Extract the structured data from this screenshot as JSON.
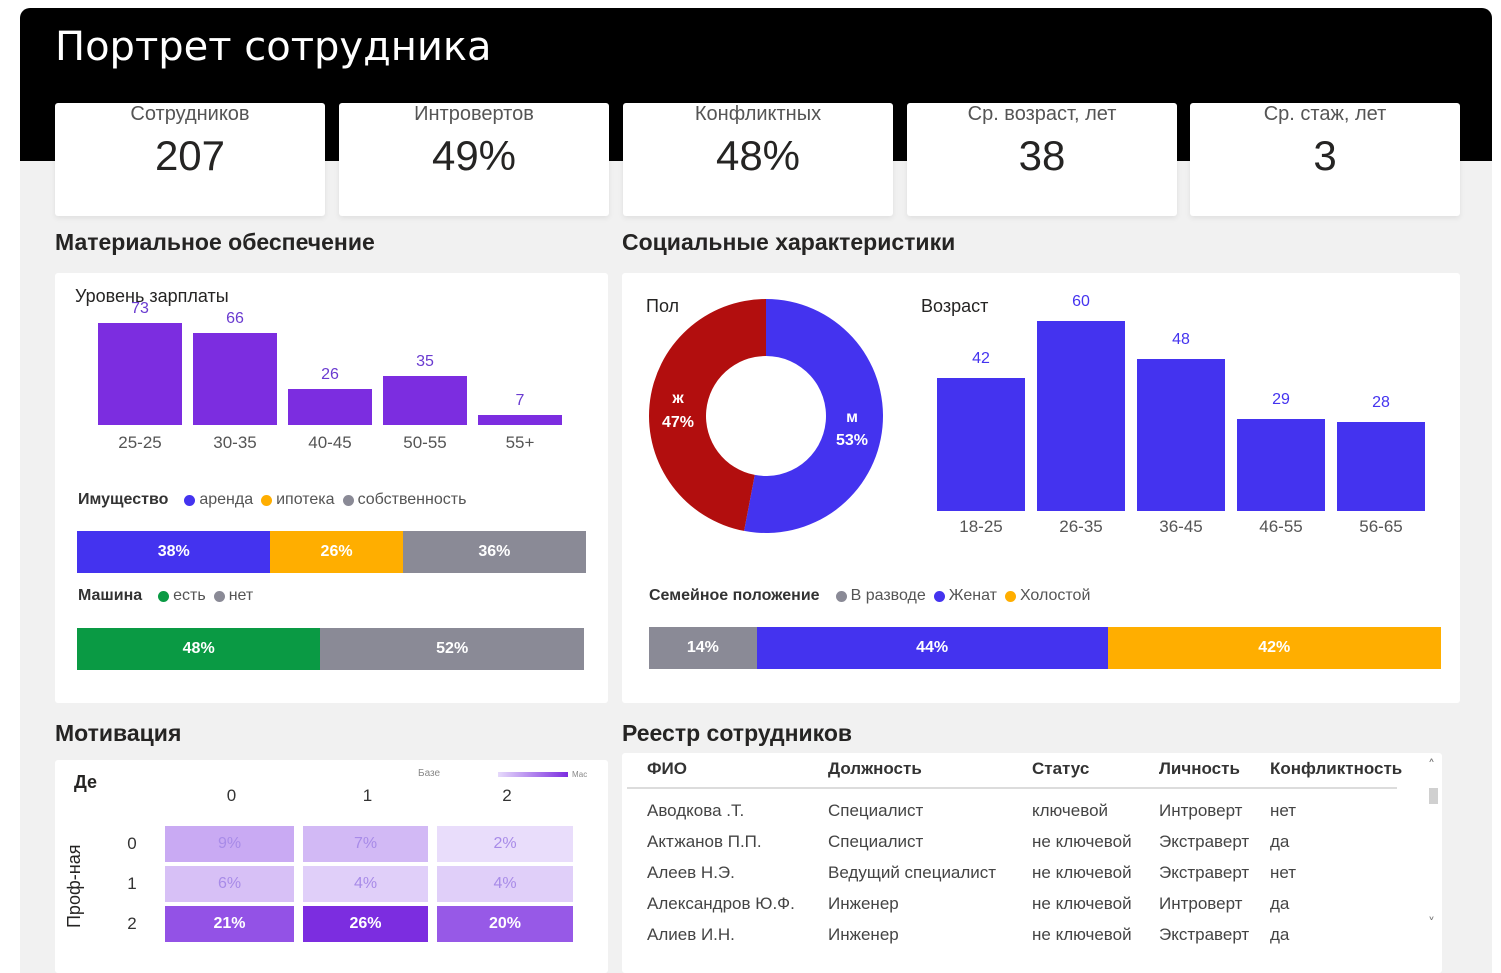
{
  "title": "Портрет сотрудника",
  "kpis": [
    {
      "label": "Сотрудников",
      "value": "207"
    },
    {
      "label": "Интровертов",
      "value": "49%"
    },
    {
      "label": "Конфликтных",
      "value": "48%"
    },
    {
      "label": "Ср. возраст, лет",
      "value": "38"
    },
    {
      "label": "Ср. стаж, лет",
      "value": "3"
    }
  ],
  "material": {
    "title": "Материальное обеспечение",
    "salary_title": "Уровень зарплаты",
    "property_legend": {
      "title": "Имущество",
      "items": [
        "аренда",
        "ипотека",
        "собственность"
      ]
    },
    "property_segments": [
      "38%",
      "26%",
      "36%"
    ],
    "car_legend": {
      "title": "Машина",
      "items": [
        "есть",
        "нет"
      ]
    },
    "car_segments": [
      "48%",
      "52%"
    ]
  },
  "social": {
    "title": "Социальные характеристики",
    "gender_title": "Пол",
    "gender_f_label": "ж",
    "gender_f_value": "47%",
    "gender_m_label": "м",
    "gender_m_value": "53%",
    "age_title": "Возраст",
    "family_legend": {
      "title": "Семейное положение",
      "items": [
        "В разводе",
        "Женат",
        "Холостой"
      ]
    },
    "family_segments": [
      "14%",
      "44%",
      "42%"
    ]
  },
  "motivation": {
    "title": "Мотивация",
    "col_axis_label": "Де",
    "row_axis_label": "Проф-ная",
    "cols": [
      "0",
      "1",
      "2"
    ],
    "rows": [
      "0",
      "1",
      "2"
    ],
    "cells": [
      [
        "9%",
        "7%",
        "2%"
      ],
      [
        "6%",
        "4%",
        "4%"
      ],
      [
        "21%",
        "26%",
        "20%"
      ]
    ],
    "cell_values": [
      [
        9,
        7,
        2
      ],
      [
        6,
        4,
        4
      ],
      [
        21,
        26,
        20
      ]
    ],
    "legend_left": "Базе",
    "legend_right": "Мас"
  },
  "registry": {
    "title": "Реестр сотрудников",
    "columns": [
      "ФИО",
      "Должность",
      "Статус",
      "Личность",
      "Конфликтность"
    ],
    "rows": [
      [
        "Аводкова .Т.",
        "Специалист",
        "ключевой",
        "Интроверт",
        "нет"
      ],
      [
        "Актжанов П.П.",
        "Специалист",
        "не ключевой",
        "Экстраверт",
        "да"
      ],
      [
        "Алеев Н.Э.",
        "Ведущий специалист",
        "не ключевой",
        "Экстраверт",
        "нет"
      ],
      [
        "Александров Ю.Ф.",
        "Инженер",
        "не ключевой",
        "Интроверт",
        "да"
      ],
      [
        "Алиев И.Н.",
        "Инженер",
        "не ключевой",
        "Экстраверт",
        "да"
      ]
    ],
    "scroll_up": "˄",
    "scroll_down": "˅"
  },
  "colors": {
    "purple": "#7c2de0",
    "blue": "#4433ef",
    "orange": "#ffae00",
    "gray": "#8a8a96",
    "green": "#0a9a44",
    "red": "#b20e0e"
  },
  "chart_data": [
    {
      "type": "bar",
      "title": "Уровень зарплаты",
      "categories": [
        "25-25",
        "30-35",
        "40-45",
        "50-55",
        "55+"
      ],
      "values": [
        73,
        66,
        26,
        35,
        7
      ],
      "ylim": [
        0,
        80
      ]
    },
    {
      "type": "pie",
      "title": "Пол",
      "categories": [
        "ж",
        "м"
      ],
      "values": [
        47,
        53
      ]
    },
    {
      "type": "bar",
      "title": "Возраст",
      "categories": [
        "18-25",
        "26-35",
        "36-45",
        "46-55",
        "56-65"
      ],
      "values": [
        42,
        60,
        48,
        29,
        28
      ],
      "ylim": [
        0,
        62
      ]
    }
  ]
}
